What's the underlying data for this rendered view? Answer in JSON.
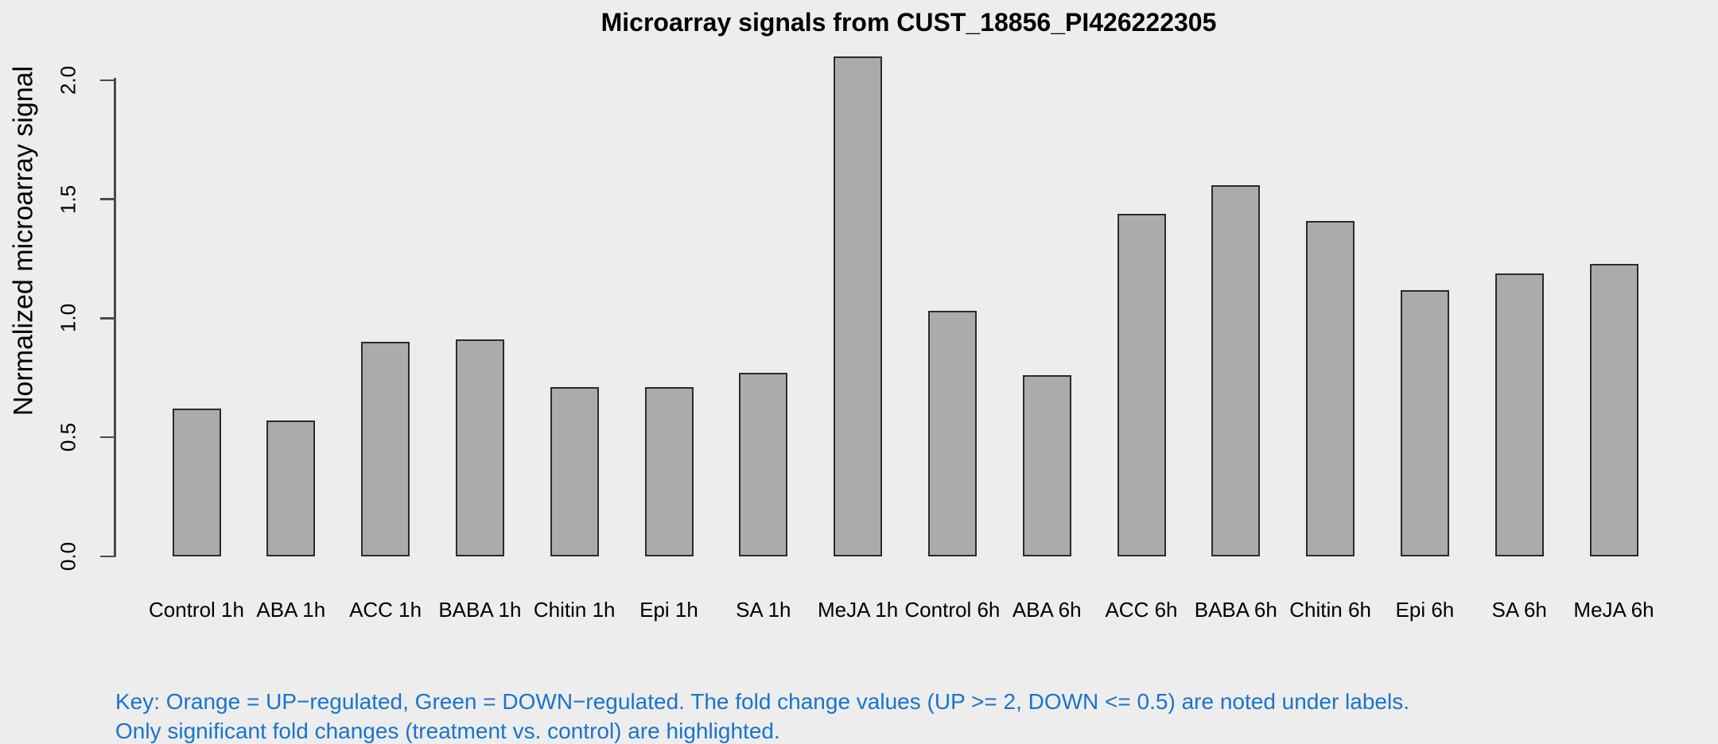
{
  "title": "Microarray signals from CUST_18856_PI426222305",
  "y_axis": {
    "label": "Normalized microarray signal"
  },
  "key": {
    "line1": "Key: Orange = UP−regulated, Green = DOWN−regulated. The fold change values (UP >= 2, DOWN <= 0.5) are noted under labels.",
    "line2": "Only significant fold changes (treatment vs. control) are highlighted."
  },
  "colors": {
    "background": "#EDEDED",
    "bar_fill": "#ABABAB",
    "bar_border": "#2B2B2B",
    "axis": "#4A4A4A",
    "key_text": "#1874CD",
    "text": "#000000"
  },
  "chart_data": {
    "type": "bar",
    "title": "Microarray signals from CUST_18856_PI426222305",
    "xlabel": "",
    "ylabel": "Normalized microarray signal",
    "categories": [
      "Control 1h",
      "ABA 1h",
      "ACC 1h",
      "BABA 1h",
      "Chitin 1h",
      "Epi 1h",
      "SA 1h",
      "MeJA 1h",
      "Control 6h",
      "ABA 6h",
      "ACC 6h",
      "BABA 6h",
      "Chitin 6h",
      "Epi 6h",
      "SA 6h",
      "MeJA 6h"
    ],
    "values": [
      0.62,
      0.57,
      0.9,
      0.91,
      0.71,
      0.71,
      0.77,
      2.1,
      1.03,
      0.76,
      1.44,
      1.56,
      1.41,
      1.12,
      1.19,
      1.23
    ],
    "yticks": [
      0.0,
      0.5,
      1.0,
      1.5,
      2.0
    ],
    "ylim": [
      0.0,
      2.1
    ],
    "grid": false,
    "legend_position": "none",
    "bar_color": "#ABABAB"
  }
}
